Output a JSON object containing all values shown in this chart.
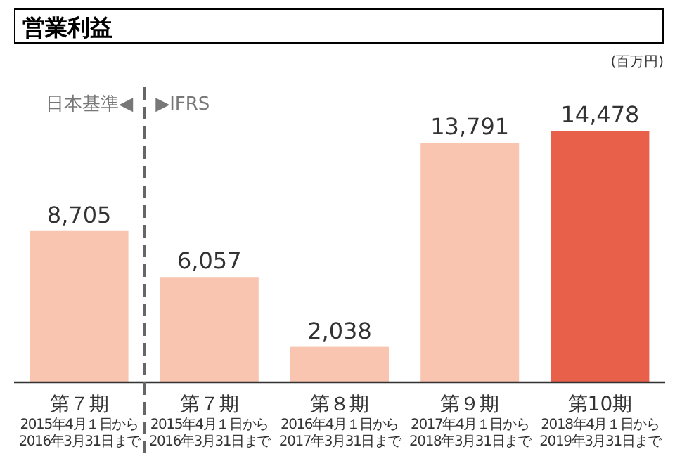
{
  "chart_data": {
    "type": "bar",
    "title": "営業利益",
    "ylabel": "(百万円)",
    "categories": [
      "第７期\n2015年4月１日から\n2016年3月31日まで",
      "第７期\n2015年4月１日から\n2016年3月31日まで",
      "第８期\n2016年4月１日から\n2017年3月31日まで",
      "第９期\n2017年4月１日から\n2018年3月31日まで",
      "第10期\n2018年4月１日から\n2019年3月31日まで"
    ],
    "values": [
      8705,
      6057,
      2038,
      13791,
      14478
    ],
    "colors": [
      "#f9c5b0",
      "#f9c5b0",
      "#f9c5b0",
      "#f9c5b0",
      "#e8604a"
    ],
    "value_labels": [
      "8,705",
      "6,057",
      "2,038",
      "13,791",
      "14,478"
    ],
    "annotations": [
      "日本基準◀",
      "▶IFRS"
    ]
  }
}
